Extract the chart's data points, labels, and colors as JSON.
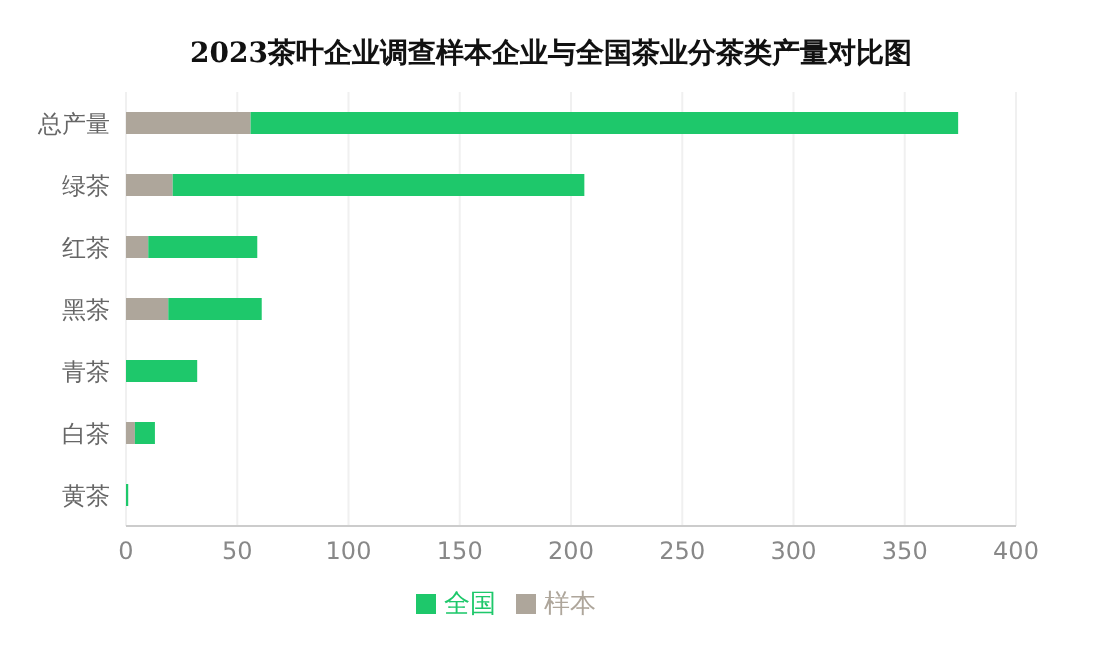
{
  "chart_data": {
    "type": "bar",
    "title": "2023茶叶企业调查样本企业与全国茶业分茶类产量对比图",
    "orientation": "horizontal",
    "stacked": true,
    "categories": [
      "总产量",
      "绿茶",
      "红茶",
      "黑茶",
      "青茶",
      "白茶",
      "黄茶"
    ],
    "series": [
      {
        "name": "样本",
        "color": "#aea69b",
        "values": [
          56,
          21,
          10,
          19,
          0,
          4,
          0
        ]
      },
      {
        "name": "全国",
        "color": "#1ec86b",
        "values": [
          318,
          185,
          49,
          42,
          32,
          9,
          1
        ]
      }
    ],
    "xlim": [
      0,
      400
    ],
    "xticks": [
      0,
      50,
      100,
      150,
      200,
      250,
      300,
      350,
      400
    ],
    "grid": "x",
    "legend": "bottom"
  }
}
